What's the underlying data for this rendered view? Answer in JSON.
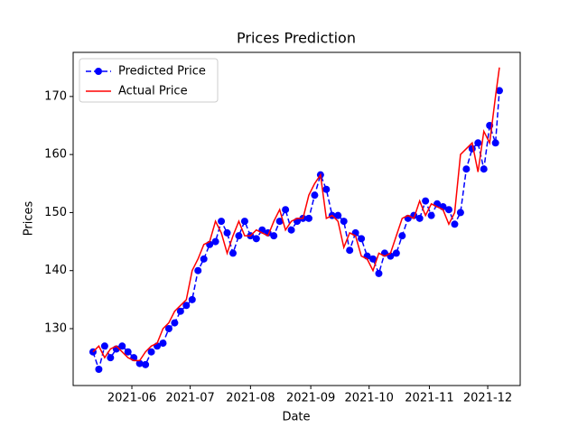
{
  "chart_data": {
    "type": "line",
    "title": "Prices Prediction",
    "xlabel": "Date",
    "ylabel": "Prices",
    "x": [
      131,
      134,
      137,
      140,
      143,
      146,
      149,
      152,
      155,
      158,
      161,
      164,
      167,
      170,
      173,
      176,
      179,
      182,
      185,
      188,
      191,
      194,
      197,
      200,
      203,
      206,
      209,
      212,
      215,
      218,
      221,
      224,
      227,
      230,
      233,
      236,
      239,
      242,
      245,
      248,
      251,
      254,
      257,
      260,
      263,
      266,
      269,
      272,
      275,
      278,
      281,
      284,
      287,
      290,
      293,
      296,
      299,
      302,
      305,
      308,
      311,
      314,
      317,
      320,
      323,
      326,
      329,
      332,
      335,
      338,
      340
    ],
    "series": [
      {
        "name": "Predicted Price",
        "color": "#0000ff",
        "dashed": true,
        "marker": true,
        "values": [
          126,
          123,
          127,
          125,
          126.5,
          127,
          126,
          125,
          124,
          123.8,
          126,
          127,
          127.5,
          130,
          131,
          133,
          134,
          135,
          140,
          142,
          144.5,
          145,
          148.5,
          146.5,
          143,
          146,
          148.5,
          146,
          145.5,
          147,
          146.5,
          146,
          148.5,
          150.5,
          147,
          148.5,
          149,
          149,
          153,
          156.5,
          154,
          149.5,
          149.5,
          148.5,
          143.5,
          146.5,
          145.5,
          142.5,
          142,
          139.5,
          143,
          142.5,
          143,
          146,
          149,
          149.5,
          149,
          152,
          149.5,
          151.5,
          151,
          150.5,
          148,
          150,
          157.5,
          161,
          162,
          157.5,
          165,
          162,
          171
        ]
      },
      {
        "name": "Actual Price",
        "color": "#ff0000",
        "dashed": false,
        "marker": false,
        "values": [
          126,
          127,
          125,
          126.5,
          127,
          126,
          125,
          124.5,
          124.5,
          126,
          127,
          127.5,
          130,
          131,
          133,
          134,
          135,
          140,
          142,
          144.5,
          145,
          148.5,
          146.5,
          143,
          146,
          148.5,
          146,
          146,
          147,
          146.5,
          146,
          148.5,
          150.5,
          147,
          148.5,
          149,
          149,
          153,
          155,
          156.5,
          149,
          149.5,
          148.5,
          144,
          146.5,
          146,
          142.5,
          142,
          140,
          143,
          142.5,
          143,
          146,
          149,
          149.5,
          149,
          152,
          149.5,
          151.5,
          151,
          150.5,
          148,
          150,
          160,
          161,
          162,
          157,
          164,
          162,
          170,
          175
        ]
      }
    ],
    "xlim": [
      120.8,
      350.7
    ],
    "xticks": [
      {
        "value": 151,
        "label": "2021-06"
      },
      {
        "value": 181,
        "label": "2021-07"
      },
      {
        "value": 212,
        "label": "2021-08"
      },
      {
        "value": 243,
        "label": "2021-09"
      },
      {
        "value": 273,
        "label": "2021-10"
      },
      {
        "value": 304,
        "label": "2021-11"
      },
      {
        "value": 334,
        "label": "2021-12"
      }
    ],
    "ylim": [
      120.2,
      177.6
    ],
    "yticks": [
      130,
      140,
      150,
      160,
      170
    ],
    "legend": "upper left"
  }
}
